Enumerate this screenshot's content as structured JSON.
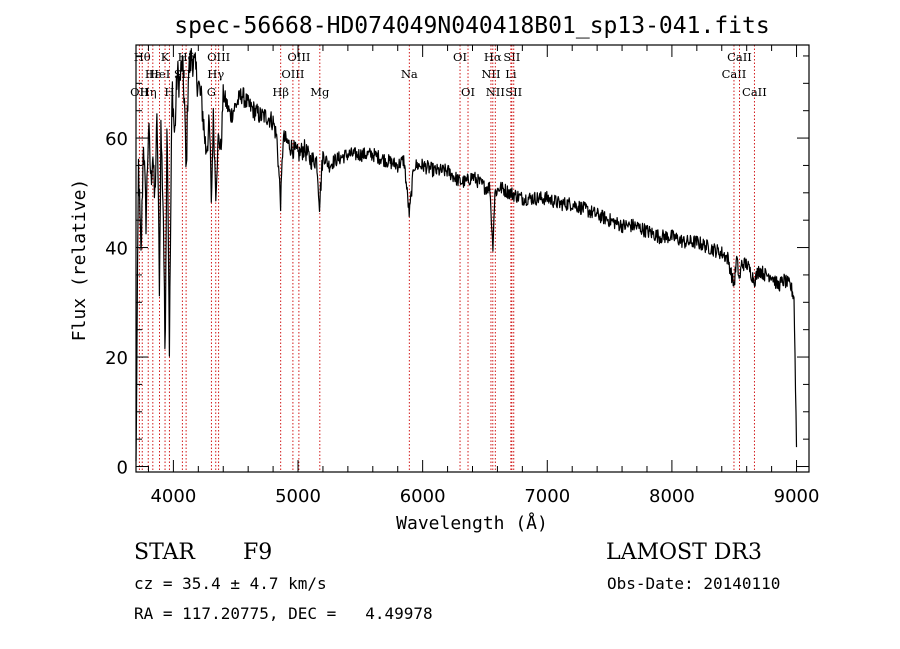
{
  "chart_data": {
    "type": "line",
    "title": "spec-56668-HD074049N040418B01_sp13-041.fits",
    "xlabel": "Wavelength (Å)",
    "ylabel": "Flux (relative)",
    "xlim": [
      3700,
      9100
    ],
    "ylim": [
      -1,
      77
    ],
    "xticks": [
      4000,
      5000,
      6000,
      7000,
      8000,
      9000
    ],
    "xtick_labels": [
      "4000",
      "5000",
      "6000",
      "7000",
      "8000",
      "9000"
    ],
    "yticks": [
      0,
      20,
      40,
      60
    ],
    "ytick_labels": [
      "0",
      "20",
      "40",
      "60"
    ],
    "series": [
      {
        "name": "flux",
        "x": [
          3700,
          3720,
          3740,
          3760,
          3780,
          3800,
          3820,
          3835,
          3850,
          3870,
          3889,
          3900,
          3920,
          3933,
          3950,
          3968,
          3990,
          4010,
          4030,
          4050,
          4070,
          4090,
          4102,
          4120,
          4150,
          4180,
          4200,
          4230,
          4260,
          4290,
          4305,
          4320,
          4340,
          4360,
          4383,
          4400,
          4430,
          4460,
          4500,
          4550,
          4600,
          4650,
          4700,
          4750,
          4800,
          4830,
          4861,
          4880,
          4920,
          4960,
          5000,
          5050,
          5100,
          5150,
          5172,
          5200,
          5250,
          5300,
          5400,
          5500,
          5600,
          5700,
          5800,
          5850,
          5893,
          5930,
          6000,
          6100,
          6200,
          6250,
          6300,
          6350,
          6400,
          6450,
          6500,
          6540,
          6563,
          6580,
          6620,
          6700,
          6800,
          6900,
          7000,
          7100,
          7200,
          7300,
          7400,
          7500,
          7600,
          7700,
          7800,
          7900,
          8000,
          8100,
          8200,
          8300,
          8400,
          8450,
          8498,
          8520,
          8542,
          8560,
          8600,
          8662,
          8700,
          8750,
          8800,
          8850,
          8900,
          8950,
          8980,
          9000
        ],
        "y": [
          0,
          55,
          38,
          60,
          45,
          62,
          52,
          58,
          48,
          64,
          32,
          62,
          46,
          20,
          66,
          22,
          70,
          60,
          72,
          70,
          74,
          66,
          52,
          72,
          75,
          72,
          70,
          66,
          58,
          62,
          48,
          64,
          50,
          60,
          58,
          68,
          66,
          64,
          66,
          68,
          66,
          65,
          64,
          64,
          63,
          60,
          48,
          60,
          59,
          58,
          57,
          58,
          56,
          56,
          48,
          57,
          55,
          56,
          57,
          57,
          57,
          56,
          55,
          56,
          46,
          55,
          55,
          54,
          54,
          53,
          52,
          52,
          53,
          52,
          51,
          51,
          40,
          50,
          51,
          50,
          49,
          49,
          49,
          48,
          48,
          47,
          46,
          45,
          44,
          44,
          43,
          42,
          42,
          41,
          41,
          40,
          39,
          38,
          33,
          38,
          34,
          37,
          37,
          34,
          36,
          35,
          35,
          33,
          34,
          33,
          31,
          4
        ]
      }
    ],
    "annotations": {
      "spectral_lines": [
        {
          "wavelength": 3727,
          "label": "OII",
          "row": 3
        },
        {
          "wavelength": 3750,
          "label": "Hθ",
          "row": 1
        },
        {
          "wavelength": 3798,
          "label": "Hη",
          "row": 3
        },
        {
          "wavelength": 3835,
          "label": "Hε",
          "row": 2
        },
        {
          "wavelength": 3889,
          "label": "HeI",
          "row": 2
        },
        {
          "wavelength": 3933,
          "label": "K",
          "row": 1
        },
        {
          "wavelength": 3968,
          "label": "H",
          "row": 3
        },
        {
          "wavelength": 4072,
          "label": "SII",
          "row": 2
        },
        {
          "wavelength": 4102,
          "label": "Hδ",
          "row": 1
        },
        {
          "wavelength": 4305,
          "label": "G",
          "row": 3
        },
        {
          "wavelength": 4340,
          "label": "Hγ",
          "row": 2
        },
        {
          "wavelength": 4363,
          "label": "OIII",
          "row": 1
        },
        {
          "wavelength": 4861,
          "label": "Hβ",
          "row": 3
        },
        {
          "wavelength": 4959,
          "label": "OIII",
          "row": 2
        },
        {
          "wavelength": 5007,
          "label": "OIII",
          "row": 1
        },
        {
          "wavelength": 5175,
          "label": "Mg",
          "row": 3
        },
        {
          "wavelength": 5893,
          "label": "Na",
          "row": 2
        },
        {
          "wavelength": 6300,
          "label": "OI",
          "row": 1
        },
        {
          "wavelength": 6364,
          "label": "OI",
          "row": 3
        },
        {
          "wavelength": 6548,
          "label": "NII",
          "row": 2
        },
        {
          "wavelength": 6563,
          "label": "Hα",
          "row": 1
        },
        {
          "wavelength": 6583,
          "label": "NII",
          "row": 3
        },
        {
          "wavelength": 6708,
          "label": "Li",
          "row": 2
        },
        {
          "wavelength": 6716,
          "label": "SII",
          "row": 1
        },
        {
          "wavelength": 6731,
          "label": "SII",
          "row": 3
        },
        {
          "wavelength": 8498,
          "label": "CaII",
          "row": 2
        },
        {
          "wavelength": 8542,
          "label": "CaII",
          "row": 1
        },
        {
          "wavelength": 8662,
          "label": "CaII",
          "row": 3
        }
      ]
    },
    "line_color": "#000000",
    "marker_line_color": "#cc0000"
  },
  "footer": {
    "object_class": "STAR",
    "subclass": "F9",
    "redshift": "cz = 35.4 ± 4.7 km/s",
    "coords": "RA = 117.20775, DEC =   4.49978",
    "survey": "LAMOST DR3",
    "obs_date": "Obs-Date: 20140110"
  }
}
